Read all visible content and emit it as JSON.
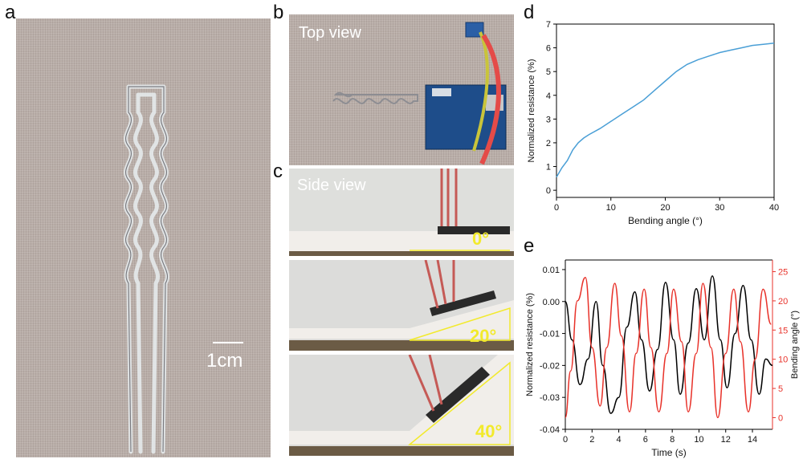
{
  "panels": {
    "a": {
      "letter": "a",
      "scale_label": "1cm"
    },
    "b": {
      "letter": "b",
      "label": "Top view"
    },
    "c": {
      "letter": "c",
      "label": "Side view",
      "angles": [
        "0°",
        "20°",
        "40°"
      ]
    },
    "d": {
      "letter": "d"
    },
    "e": {
      "letter": "e"
    }
  },
  "colors": {
    "blue_curve": "#4a9fd6",
    "black_curve": "#000000",
    "red_curve": "#e8322a",
    "angle_text": "#f2ea2c"
  },
  "chart_data": [
    {
      "panel": "d",
      "type": "line",
      "xlabel": "Bending angle (°)",
      "ylabel": "Normalized resistance (%)",
      "xlim": [
        0,
        40
      ],
      "ylim": [
        -0.3,
        7
      ],
      "xticks": [
        0,
        10,
        20,
        30,
        40
      ],
      "yticks": [
        0,
        1,
        2,
        3,
        4,
        5,
        6,
        7
      ],
      "series": [
        {
          "color": "#4a9fd6",
          "x": [
            0,
            0.5,
            1,
            2,
            3,
            4,
            5,
            6,
            8,
            10,
            12,
            14,
            16,
            18,
            20,
            22,
            24,
            26,
            28,
            30,
            32,
            34,
            36,
            38,
            40
          ],
          "y": [
            0.55,
            0.75,
            0.95,
            1.25,
            1.7,
            2.0,
            2.2,
            2.35,
            2.6,
            2.9,
            3.2,
            3.5,
            3.8,
            4.2,
            4.6,
            5.0,
            5.3,
            5.5,
            5.65,
            5.8,
            5.9,
            6.0,
            6.1,
            6.15,
            6.2
          ]
        }
      ]
    },
    {
      "panel": "e",
      "type": "line",
      "xlabel": "Time (s)",
      "ylabel_left": "Normalized resistance (%)",
      "ylabel_right": "Bending angle (°)",
      "xlim": [
        0,
        15.5
      ],
      "ylim_left": [
        -0.04,
        0.013
      ],
      "ylim_right": [
        -2,
        27
      ],
      "xticks": [
        0,
        2,
        4,
        6,
        8,
        10,
        12,
        14
      ],
      "yticks_left": [
        -0.04,
        -0.03,
        -0.02,
        -0.01,
        0.0,
        0.01
      ],
      "yticks_left_labels": [
        "-0.04",
        "-0.03",
        "-0.02",
        "-0.01",
        "0.00",
        "0.01"
      ],
      "yticks_right": [
        0,
        5,
        10,
        15,
        20,
        25
      ],
      "series": [
        {
          "axis": "left",
          "color": "#000000",
          "x": [
            0,
            0.5,
            1.1,
            1.7,
            2.3,
            2.8,
            3.4,
            4.0,
            4.6,
            5.2,
            5.7,
            6.3,
            6.9,
            7.5,
            8.1,
            8.6,
            9.2,
            9.8,
            10.4,
            11.0,
            11.6,
            12.1,
            12.7,
            13.3,
            13.9,
            14.5,
            15.0,
            15.5
          ],
          "y": [
            0.0,
            -0.012,
            -0.026,
            -0.018,
            0.0,
            -0.02,
            -0.035,
            -0.03,
            -0.008,
            0.003,
            -0.012,
            -0.028,
            -0.015,
            0.006,
            -0.012,
            -0.029,
            -0.013,
            0.004,
            -0.012,
            0.008,
            -0.012,
            -0.027,
            -0.01,
            0.005,
            -0.012,
            -0.029,
            -0.018,
            -0.02
          ]
        },
        {
          "axis": "right",
          "color": "#e8322a",
          "x": [
            0,
            0.4,
            0.9,
            1.5,
            2.0,
            2.6,
            3.1,
            3.7,
            4.2,
            4.8,
            5.3,
            5.9,
            6.4,
            7.0,
            7.6,
            8.1,
            8.7,
            9.2,
            9.8,
            10.3,
            10.9,
            11.4,
            12.0,
            12.6,
            13.1,
            13.7,
            14.2,
            14.8,
            15.4
          ],
          "y": [
            0,
            8,
            20,
            24,
            12,
            2,
            12,
            23,
            14,
            1,
            11,
            22,
            12,
            1,
            11,
            22,
            13,
            1,
            11,
            23,
            12,
            0,
            11,
            22,
            13,
            1,
            10,
            22,
            16
          ]
        }
      ]
    }
  ]
}
